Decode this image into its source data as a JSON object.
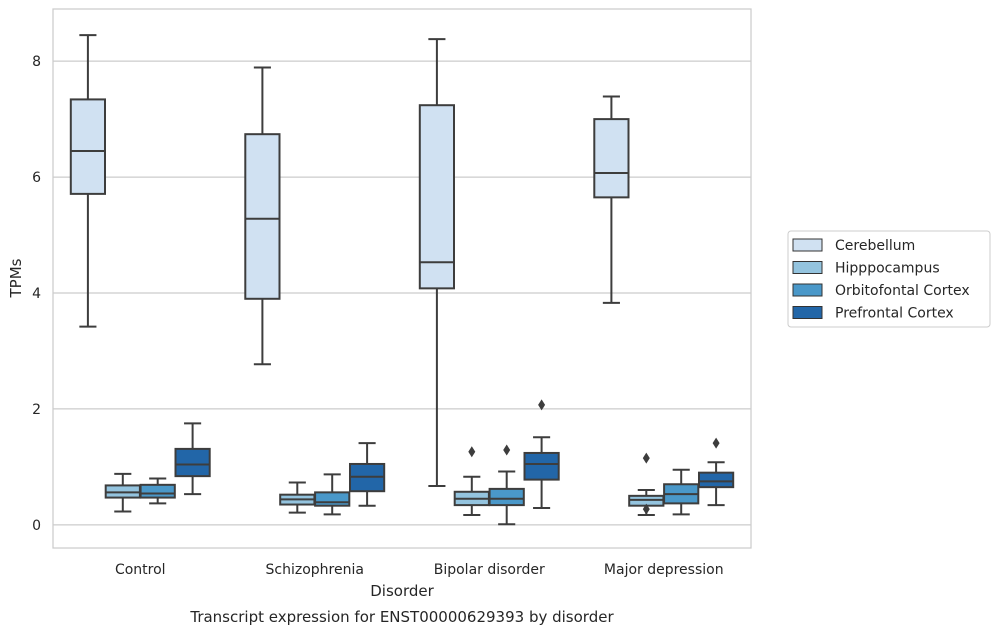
{
  "chart_data": {
    "type": "boxplot",
    "title": "Transcript expression for ENST00000629393 by disorder",
    "xlabel": "Disorder",
    "ylabel": "TPMs",
    "ylim": [
      -0.4,
      8.9
    ],
    "yticks": [
      0,
      2,
      4,
      6,
      8
    ],
    "grid": "horizontal",
    "legend_position": "right",
    "categories": [
      "Control",
      "Schizophrenia",
      "Bipolar disorder",
      "Major depression"
    ],
    "series": [
      {
        "name": "Cerebellum",
        "color": "#d0e1f2",
        "boxes": [
          {
            "whislo": 3.42,
            "q1": 5.71,
            "med": 6.45,
            "q3": 7.34,
            "whishi": 8.45,
            "fliers": []
          },
          {
            "whislo": 2.77,
            "q1": 3.9,
            "med": 5.28,
            "q3": 6.74,
            "whishi": 7.89,
            "fliers": []
          },
          {
            "whislo": 0.67,
            "q1": 4.08,
            "med": 4.53,
            "q3": 7.24,
            "whishi": 8.38,
            "fliers": []
          },
          {
            "whislo": 3.83,
            "q1": 5.65,
            "med": 6.07,
            "q3": 7.0,
            "whishi": 7.39,
            "fliers": []
          }
        ]
      },
      {
        "name": "Hipppocampus",
        "color": "#94c4df",
        "boxes": [
          {
            "whislo": 0.23,
            "q1": 0.47,
            "med": 0.56,
            "q3": 0.68,
            "whishi": 0.88,
            "fliers": []
          },
          {
            "whislo": 0.21,
            "q1": 0.35,
            "med": 0.44,
            "q3": 0.52,
            "whishi": 0.73,
            "fliers": []
          },
          {
            "whislo": 0.17,
            "q1": 0.34,
            "med": 0.45,
            "q3": 0.57,
            "whishi": 0.83,
            "fliers": [
              1.26
            ]
          },
          {
            "whislo": 0.17,
            "q1": 0.33,
            "med": 0.43,
            "q3": 0.5,
            "whishi": 0.6,
            "fliers": [
              0.27,
              1.15
            ]
          }
        ]
      },
      {
        "name": "Orbitofontal Cortex",
        "color": "#4a98c9",
        "boxes": [
          {
            "whislo": 0.37,
            "q1": 0.47,
            "med": 0.54,
            "q3": 0.69,
            "whishi": 0.8,
            "fliers": []
          },
          {
            "whislo": 0.18,
            "q1": 0.33,
            "med": 0.39,
            "q3": 0.56,
            "whishi": 0.87,
            "fliers": []
          },
          {
            "whislo": 0.01,
            "q1": 0.34,
            "med": 0.45,
            "q3": 0.62,
            "whishi": 0.92,
            "fliers": [
              1.29
            ]
          },
          {
            "whislo": 0.18,
            "q1": 0.37,
            "med": 0.53,
            "q3": 0.7,
            "whishi": 0.95,
            "fliers": []
          }
        ]
      },
      {
        "name": "Prefrontal Cortex",
        "color": "#2266a8",
        "boxes": [
          {
            "whislo": 0.53,
            "q1": 0.84,
            "med": 1.04,
            "q3": 1.31,
            "whishi": 1.75,
            "fliers": []
          },
          {
            "whislo": 0.33,
            "q1": 0.58,
            "med": 0.83,
            "q3": 1.05,
            "whishi": 1.41,
            "fliers": []
          },
          {
            "whislo": 0.29,
            "q1": 0.78,
            "med": 1.05,
            "q3": 1.24,
            "whishi": 1.51,
            "fliers": [
              2.07
            ]
          },
          {
            "whislo": 0.34,
            "q1": 0.65,
            "med": 0.75,
            "q3": 0.9,
            "whishi": 1.08,
            "fliers": [
              1.41
            ]
          }
        ]
      }
    ]
  }
}
